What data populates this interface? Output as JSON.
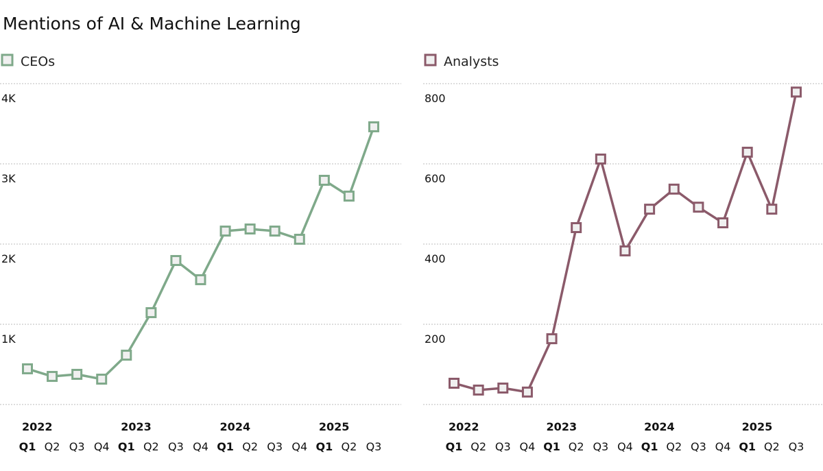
{
  "title": "Mentions of AI & Machine Learning",
  "chart_data": [
    {
      "type": "line",
      "series": [
        {
          "name": "CEOs",
          "color": "#7fa98a",
          "values": [
            445,
            350,
            376,
            316,
            615,
            1145,
            1795,
            1556,
            2162,
            2188,
            2162,
            2060,
            2795,
            2598,
            3462
          ]
        }
      ],
      "x": [
        "2022 Q1",
        "2022 Q2",
        "2022 Q3",
        "2022 Q4",
        "2023 Q1",
        "2023 Q2",
        "2023 Q3",
        "2023 Q4",
        "2024 Q1",
        "2024 Q2",
        "2024 Q3",
        "2024 Q4",
        "2025 Q1",
        "2025 Q2",
        "2025 Q3"
      ],
      "years": [
        "2022",
        "2023",
        "2024",
        "2025"
      ],
      "quarters": [
        "Q1",
        "Q2",
        "Q3",
        "Q4"
      ],
      "yticks": [
        1000,
        2000,
        3000,
        4000
      ],
      "ytick_labels": [
        "1K",
        "2K",
        "3K",
        "4K"
      ],
      "ylim": [
        0,
        4000
      ],
      "grid": true,
      "legend": "top-left"
    },
    {
      "type": "line",
      "series": [
        {
          "name": "Analysts",
          "color": "#8b5a6a",
          "values": [
            53,
            36,
            41,
            31,
            164,
            441,
            612,
            383,
            487,
            537,
            492,
            453,
            629,
            487,
            779
          ]
        }
      ],
      "x": [
        "2022 Q1",
        "2022 Q2",
        "2022 Q3",
        "2022 Q4",
        "2023 Q1",
        "2023 Q2",
        "2023 Q3",
        "2023 Q4",
        "2024 Q1",
        "2024 Q2",
        "2024 Q3",
        "2024 Q4",
        "2025 Q1",
        "2025 Q2",
        "2025 Q3"
      ],
      "years": [
        "2022",
        "2023",
        "2024",
        "2025"
      ],
      "quarters": [
        "Q1",
        "Q2",
        "Q3",
        "Q4"
      ],
      "yticks": [
        200,
        400,
        600,
        800
      ],
      "ytick_labels": [
        "200",
        "400",
        "600",
        "800"
      ],
      "ylim": [
        0,
        800
      ],
      "grid": true,
      "legend": "top-left"
    }
  ]
}
